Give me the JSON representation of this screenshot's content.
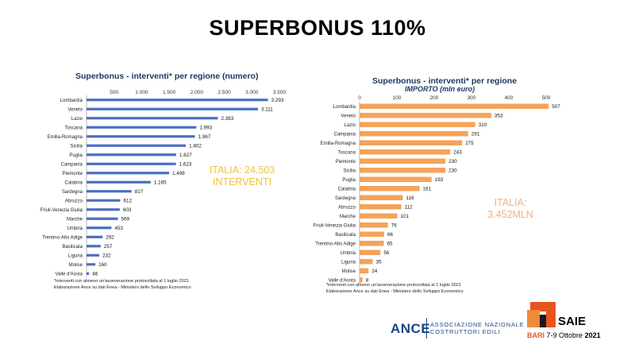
{
  "title": "SUPERBONUS 110%",
  "chart_data": [
    {
      "type": "bar",
      "orientation": "horizontal",
      "title": "Superbonus - interventi* per regione (numero)",
      "categories": [
        "Lombardia",
        "Veneto",
        "Lazio",
        "Toscana",
        "Emilia-Romagna",
        "Sicilia",
        "Puglia",
        "Campania",
        "Piemonte",
        "Calabria",
        "Sardegna",
        "Abruzzo",
        "Friuli-Venezia Giulia",
        "Marche",
        "Umbria",
        "Trentino-Alto Adige",
        "Basilicata",
        "Liguria",
        "Molise",
        "Valle d'Aosta"
      ],
      "values": [
        3293,
        3111,
        2383,
        1993,
        1967,
        1802,
        1627,
        1623,
        1498,
        1165,
        817,
        612,
        603,
        569,
        453,
        292,
        257,
        232,
        160,
        46
      ],
      "value_labels": [
        "3.293",
        "3.111",
        "2.383",
        "1.993",
        "1.967",
        "1.802",
        "1.627",
        "1.623",
        "1.498",
        "1.165",
        "817",
        "612",
        "603",
        "569",
        "453",
        "292",
        "257",
        "232",
        "160",
        "46"
      ],
      "xlim": [
        0,
        3500
      ],
      "ticks": [
        500,
        1000,
        1500,
        2000,
        2500,
        3000,
        3500
      ],
      "tick_labels": [
        "500",
        "1.000",
        "1.500",
        "2.000",
        "2.500",
        "3.000",
        "3.500"
      ],
      "bar_color": "#4a6fc1",
      "grid": false,
      "total_lines": [
        "ITALIA: 24.503",
        "INTERVENTI"
      ],
      "total_color": "#f0c040",
      "notes": [
        "*interventi con almeno un'asseverazione protocollata al 1 luglio 2021",
        "Elaborazione Ance su dati Enea - Ministero dello Sviluppo Economico"
      ]
    },
    {
      "type": "bar",
      "orientation": "horizontal",
      "title": "Superbonus - interventi* per regione",
      "subtitle": "IMPORTO  (mln euro)",
      "categories": [
        "Lombardia",
        "Veneto",
        "Lazio",
        "Campania",
        "Emilia-Romagna",
        "Toscana",
        "Piemonte",
        "Sicilia",
        "Puglia",
        "Calabria",
        "Sardegna",
        "Abruzzo",
        "Marche",
        "Friuli-Venezia Giulia",
        "Basilicata",
        "Trentino-Alto Adige",
        "Umbria",
        "Liguria",
        "Molise",
        "Valle d'Aosta"
      ],
      "values": [
        507,
        353,
        310,
        291,
        275,
        243,
        230,
        230,
        193,
        161,
        116,
        112,
        101,
        76,
        66,
        65,
        56,
        35,
        24,
        8
      ],
      "value_labels": [
        "507",
        "353",
        "310",
        "291",
        "275",
        "243",
        "230",
        "230",
        "193",
        "161",
        "116",
        "112",
        "101",
        "76",
        "66",
        "65",
        "56",
        "35",
        "24",
        "8"
      ],
      "xlim": [
        0,
        500
      ],
      "ticks": [
        0,
        100,
        200,
        300,
        400,
        500
      ],
      "tick_labels": [
        "0",
        "100",
        "200",
        "300",
        "400",
        "500"
      ],
      "bar_color": "#f4a35a",
      "grid": false,
      "total_lines": [
        "ITALIA:",
        "3.452MLN"
      ],
      "total_color": "#f4b183",
      "notes": [
        "*interventi con almeno un'asseverazione protocollata al 1 luglio 2021",
        "Elaborazione Ance su dati Enea - Ministero dello Sviluppo Economico"
      ]
    }
  ],
  "logos": {
    "ance": "ANCE",
    "ance_sub": [
      "ASSOCIAZIONE NAZIONALE",
      "COSTRUTTORI EDILI"
    ],
    "saie": "SAIE",
    "saie_city": "BARI",
    "saie_days": "7-9",
    "saie_month": "Ottobre",
    "saie_year": "2021"
  },
  "colors": {
    "title_blue": "#1f3864",
    "ance_blue": "#1c4587",
    "saie_orange": "#e8541e"
  }
}
